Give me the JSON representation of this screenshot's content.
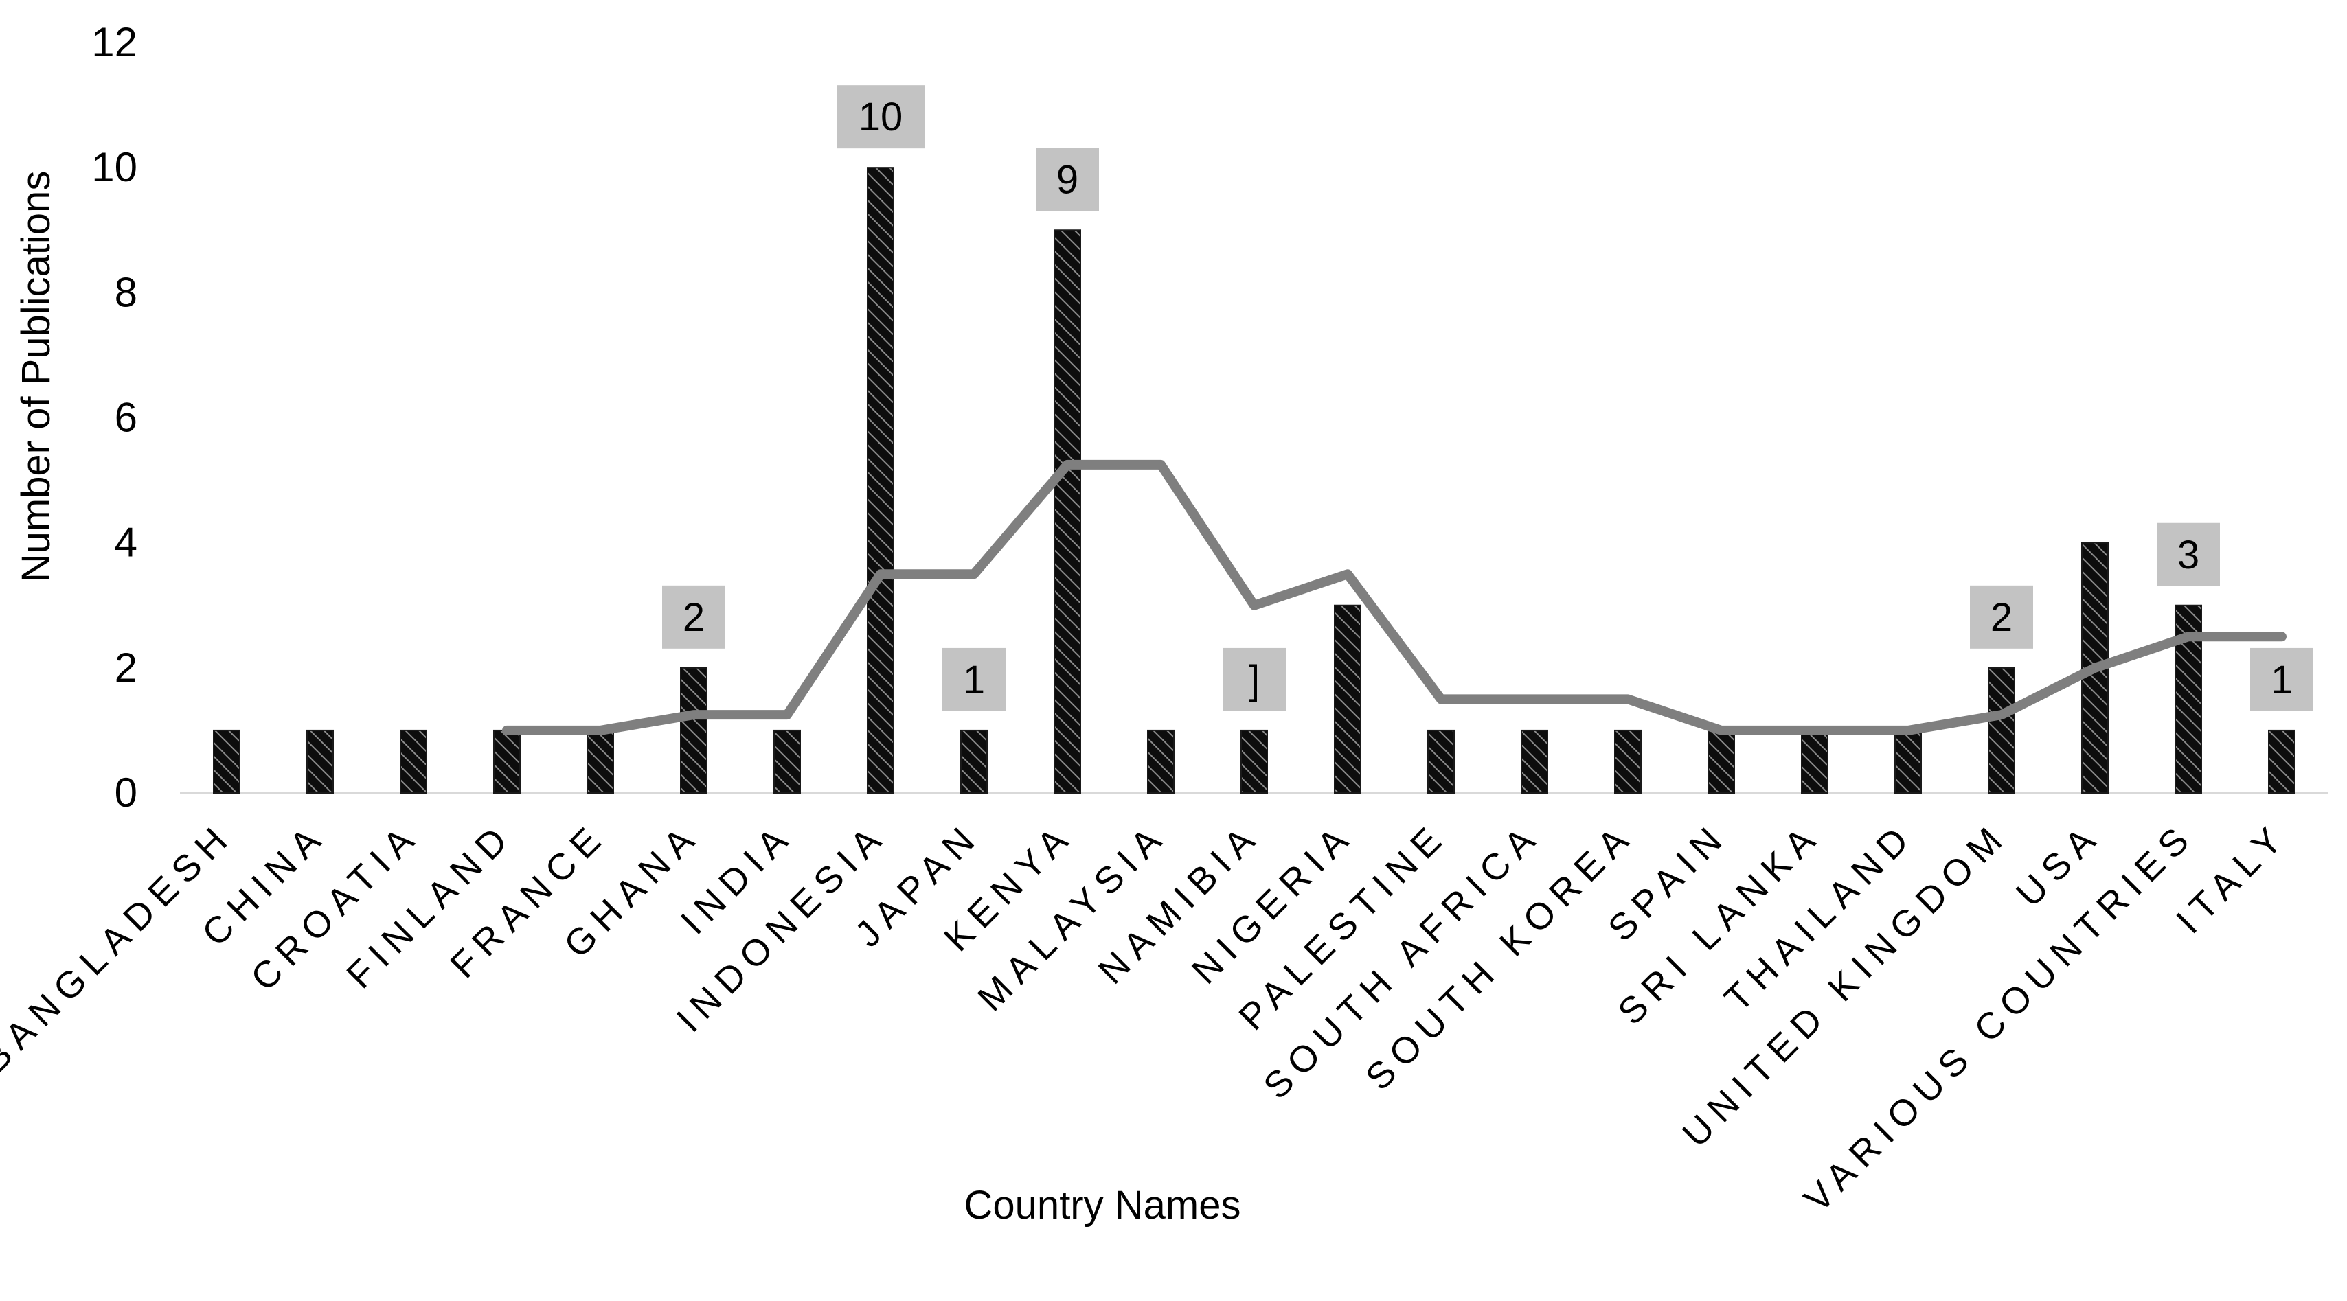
{
  "chart_data": {
    "type": "bar",
    "xlabel": "Country Names",
    "ylabel": "Number of Publications",
    "ylim": [
      0,
      12
    ],
    "y_ticks": [
      "0",
      "2",
      "4",
      "6",
      "8",
      "10",
      "12"
    ],
    "grid": false,
    "legend": "none",
    "categories": [
      "BANGLADESH",
      "CHINA",
      "CROATIA",
      "FINLAND",
      "FRANCE",
      "GHANA",
      "INDIA",
      "INDONESIA",
      "JAPAN",
      "KENYA",
      "MALAYSIA",
      "NAMIBIA",
      "NIGERIA",
      "PALESTINE",
      "SOUTH AFRICA",
      "SOUTH KOREA",
      "SPAIN",
      "SRI LANKA",
      "THAILAND",
      "UNITED KINGDOM",
      "USA",
      "VARIOUS COUNTRIES",
      "ITALY"
    ],
    "series": [
      {
        "type": "bar",
        "values": [
          1,
          1,
          1,
          1,
          1,
          2,
          1,
          10,
          1,
          9,
          1,
          1,
          3,
          1,
          1,
          1,
          1,
          1,
          1,
          2,
          4,
          3,
          1
        ],
        "color": "#1a1a1a",
        "pattern": "diagonal-hatch"
      },
      {
        "type": "line",
        "trendline": "moving-average-2",
        "values": [
          null,
          null,
          null,
          1,
          1,
          1.25,
          1.25,
          3.5,
          3.5,
          5.25,
          5.25,
          3,
          3.5,
          1.5,
          1.5,
          1.5,
          1,
          1,
          1,
          1.25,
          2,
          2.5,
          2.5
        ],
        "color": "#7f7f7f"
      }
    ],
    "data_labels": [
      {
        "category": "GHANA",
        "text": "2"
      },
      {
        "category": "INDONESIA",
        "text": "10"
      },
      {
        "category": "JAPAN",
        "text": "1"
      },
      {
        "category": "KENYA",
        "text": "9"
      },
      {
        "category": "NAMIBIA",
        "text": "]"
      },
      {
        "category": "UNITED KINGDOM",
        "text": "2"
      },
      {
        "category": "VARIOUS COUNTRIES",
        "text": "3"
      },
      {
        "category": "ITALY",
        "text": "1"
      }
    ],
    "colors": {
      "label_box": "#c3c3c3",
      "axis_line": "#d9d9d9"
    }
  }
}
